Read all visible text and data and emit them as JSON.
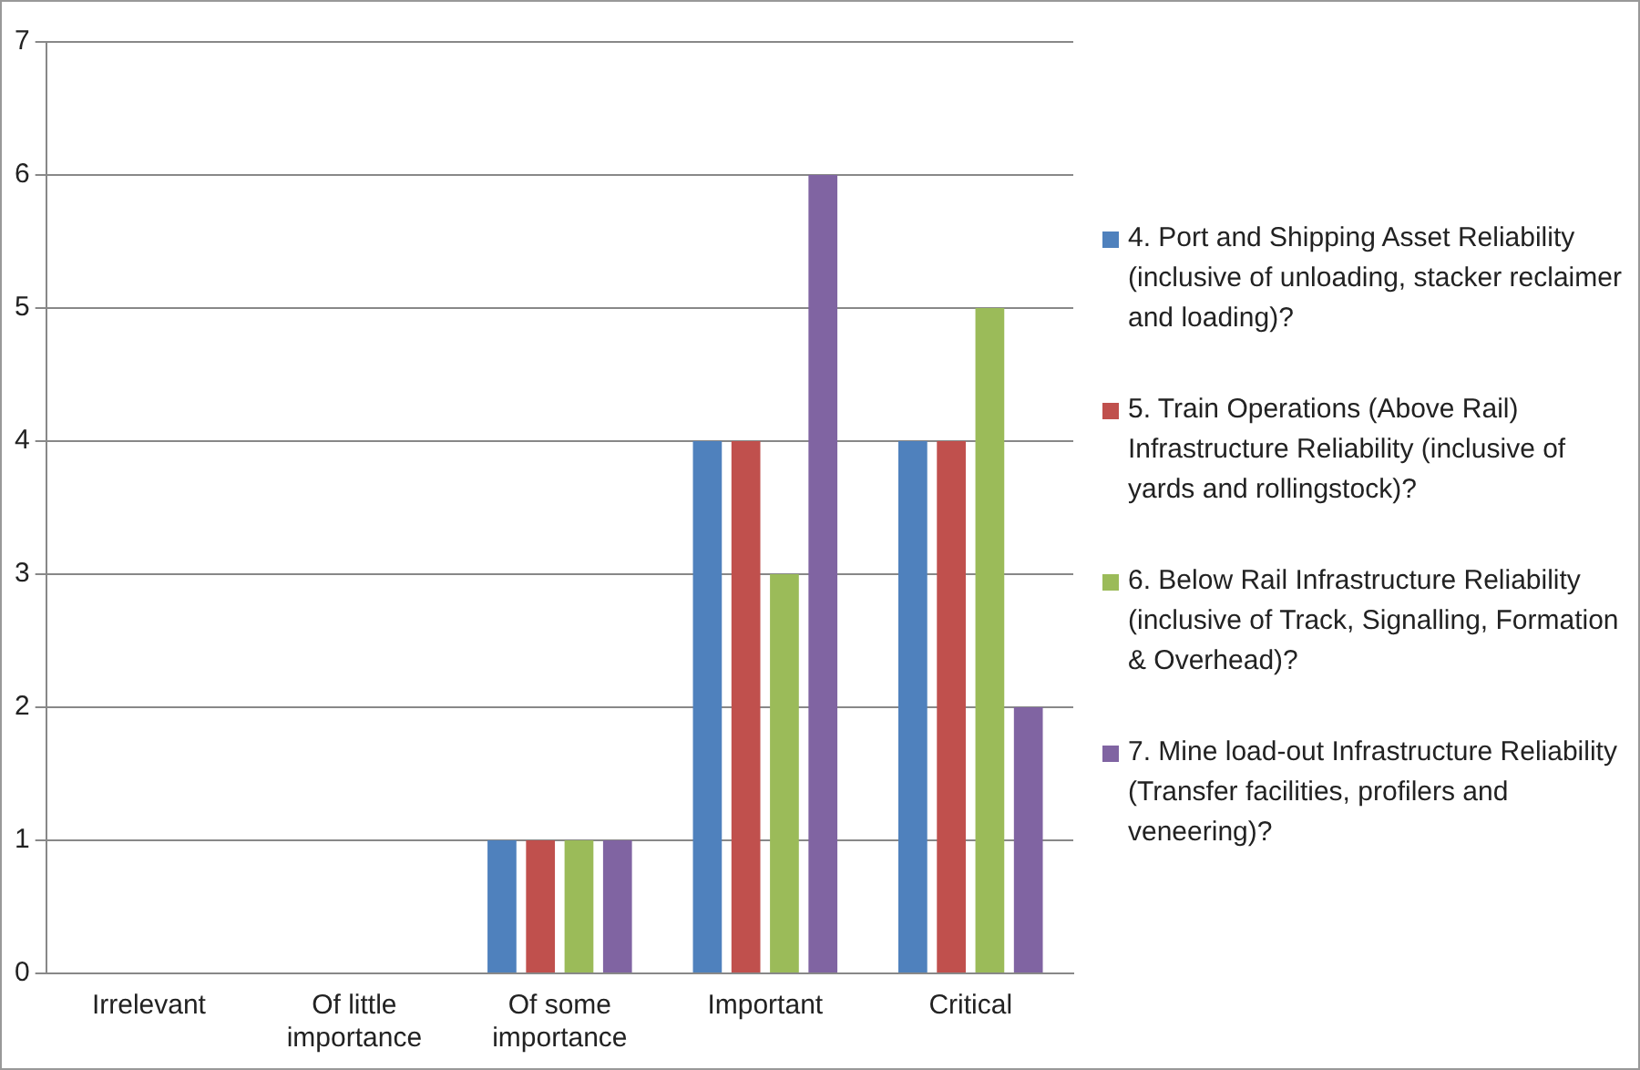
{
  "chart_data": {
    "type": "bar",
    "categories": [
      "Irrelevant",
      "Of little importance",
      "Of some importance",
      "Important",
      "Critical"
    ],
    "series": [
      {
        "name": "4. Port and Shipping Asset Reliability (inclusive of unloading, stacker reclaimer and loading)?",
        "color": "#4f81bd",
        "values": [
          0,
          0,
          1,
          4,
          4
        ]
      },
      {
        "name": "5. Train Operations (Above Rail) Infrastructure Reliability (inclusive of yards and rollingstock)?",
        "color": "#c0504d",
        "values": [
          0,
          0,
          1,
          4,
          4
        ]
      },
      {
        "name": "6. Below Rail Infrastructure Reliability (inclusive of Track, Signalling, Formation & Overhead)?",
        "color": "#9bbb59",
        "values": [
          0,
          0,
          1,
          3,
          5
        ]
      },
      {
        "name": "7. Mine load-out Infrastructure Reliability (Transfer facilities, profilers and veneering)?",
        "color": "#8064a2",
        "values": [
          0,
          0,
          1,
          6,
          2
        ]
      }
    ],
    "ylim": [
      0,
      7
    ],
    "yticks": [
      0,
      1,
      2,
      3,
      4,
      5,
      6,
      7
    ],
    "grid": "y",
    "legend": "right"
  }
}
